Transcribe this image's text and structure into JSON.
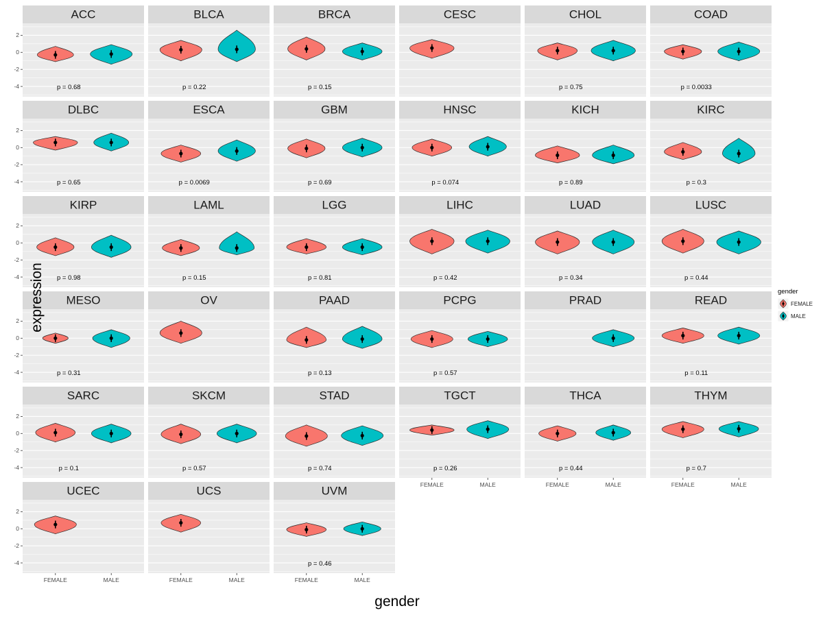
{
  "colors": {
    "strip": "#d9d9d9",
    "panel": "#ebebeb",
    "grid": "#ffffff",
    "female": "#F8766D",
    "male": "#00BFC4"
  },
  "legend": {
    "title": "gender",
    "entries": [
      {
        "label": "FEMALE",
        "color": "#F8766D"
      },
      {
        "label": "MALE",
        "color": "#00BFC4"
      }
    ]
  },
  "chart_data": {
    "type": "violin",
    "xlabel": "gender",
    "ylabel": "expression",
    "x_categories": [
      "FEMALE",
      "MALE"
    ],
    "yticks": [
      2,
      0,
      -2,
      -4
    ],
    "yticks_minor": [
      3,
      1,
      -1,
      -3,
      -5
    ],
    "ylim": [
      -5.2,
      3.4
    ],
    "grid": true,
    "legend_position": "right",
    "facets": [
      {
        "name": "ACC",
        "p": "p = 0.68",
        "row": 0,
        "col": 0,
        "x_axis": false,
        "violins": [
          {
            "gender": "FEMALE",
            "median": -0.3,
            "min": -1.1,
            "max": 0.7,
            "width": 0.78
          },
          {
            "gender": "MALE",
            "median": -0.2,
            "min": -1.4,
            "max": 0.9,
            "width": 0.9
          }
        ]
      },
      {
        "name": "BLCA",
        "p": "p = 0.22",
        "row": 0,
        "col": 1,
        "x_axis": false,
        "violins": [
          {
            "gender": "FEMALE",
            "median": 0.3,
            "min": -1.0,
            "max": 1.4,
            "width": 0.9
          },
          {
            "gender": "MALE",
            "median": 0.35,
            "min": -1.1,
            "max": 2.6,
            "width": 0.8
          }
        ]
      },
      {
        "name": "BRCA",
        "p": "p = 0.15",
        "row": 0,
        "col": 2,
        "x_axis": false,
        "violins": [
          {
            "gender": "FEMALE",
            "median": 0.4,
            "min": -0.9,
            "max": 1.8,
            "width": 0.8
          },
          {
            "gender": "MALE",
            "median": 0.1,
            "min": -0.9,
            "max": 1.1,
            "width": 0.85
          }
        ]
      },
      {
        "name": "CESC",
        "p": null,
        "row": 0,
        "col": 3,
        "x_axis": false,
        "violins": [
          {
            "gender": "FEMALE",
            "median": 0.5,
            "min": -0.7,
            "max": 1.5,
            "width": 0.95
          }
        ]
      },
      {
        "name": "CHOL",
        "p": "p = 0.75",
        "row": 0,
        "col": 4,
        "x_axis": false,
        "violins": [
          {
            "gender": "FEMALE",
            "median": 0.2,
            "min": -0.9,
            "max": 1.1,
            "width": 0.85
          },
          {
            "gender": "MALE",
            "median": 0.2,
            "min": -1.0,
            "max": 1.4,
            "width": 0.95
          }
        ]
      },
      {
        "name": "COAD",
        "p": "p = 0.0033",
        "row": 0,
        "col": 5,
        "x_axis": false,
        "violins": [
          {
            "gender": "FEMALE",
            "median": 0.1,
            "min": -0.8,
            "max": 0.9,
            "width": 0.8
          },
          {
            "gender": "MALE",
            "median": 0.1,
            "min": -1.0,
            "max": 1.2,
            "width": 0.9
          }
        ]
      },
      {
        "name": "DLBC",
        "p": "p = 0.65",
        "row": 1,
        "col": 0,
        "x_axis": false,
        "violins": [
          {
            "gender": "FEMALE",
            "median": 0.6,
            "min": -0.3,
            "max": 1.3,
            "width": 0.95
          },
          {
            "gender": "MALE",
            "median": 0.6,
            "min": -0.4,
            "max": 1.7,
            "width": 0.75
          }
        ]
      },
      {
        "name": "ESCA",
        "p": "p = 0.0069",
        "row": 1,
        "col": 1,
        "x_axis": false,
        "violins": [
          {
            "gender": "FEMALE",
            "median": -0.7,
            "min": -1.7,
            "max": 0.3,
            "width": 0.85
          },
          {
            "gender": "MALE",
            "median": -0.4,
            "min": -1.6,
            "max": 0.9,
            "width": 0.8
          }
        ]
      },
      {
        "name": "GBM",
        "p": "p = 0.69",
        "row": 1,
        "col": 2,
        "x_axis": false,
        "violins": [
          {
            "gender": "FEMALE",
            "median": -0.1,
            "min": -1.2,
            "max": 1.0,
            "width": 0.8
          },
          {
            "gender": "MALE",
            "median": 0.0,
            "min": -1.1,
            "max": 1.1,
            "width": 0.85
          }
        ]
      },
      {
        "name": "HNSC",
        "p": "p = 0.074",
        "row": 1,
        "col": 3,
        "x_axis": false,
        "violins": [
          {
            "gender": "FEMALE",
            "median": 0.0,
            "min": -1.0,
            "max": 1.0,
            "width": 0.85
          },
          {
            "gender": "MALE",
            "median": 0.1,
            "min": -1.0,
            "max": 1.3,
            "width": 0.8
          }
        ]
      },
      {
        "name": "KICH",
        "p": "p = 0.89",
        "row": 1,
        "col": 4,
        "x_axis": false,
        "violins": [
          {
            "gender": "FEMALE",
            "median": -0.9,
            "min": -1.8,
            "max": 0.2,
            "width": 0.95
          },
          {
            "gender": "MALE",
            "median": -0.9,
            "min": -1.9,
            "max": 0.3,
            "width": 0.9
          }
        ]
      },
      {
        "name": "KIRC",
        "p": "p = 0.3",
        "row": 1,
        "col": 5,
        "x_axis": false,
        "violins": [
          {
            "gender": "FEMALE",
            "median": -0.5,
            "min": -1.4,
            "max": 0.6,
            "width": 0.8
          },
          {
            "gender": "MALE",
            "median": -0.7,
            "min": -1.9,
            "max": 1.1,
            "width": 0.7
          }
        ]
      },
      {
        "name": "KIRP",
        "p": "p = 0.98",
        "row": 2,
        "col": 0,
        "x_axis": false,
        "violins": [
          {
            "gender": "FEMALE",
            "median": -0.5,
            "min": -1.5,
            "max": 0.6,
            "width": 0.8
          },
          {
            "gender": "MALE",
            "median": -0.5,
            "min": -1.7,
            "max": 0.9,
            "width": 0.85
          }
        ]
      },
      {
        "name": "LAML",
        "p": "p = 0.15",
        "row": 2,
        "col": 1,
        "x_axis": false,
        "violins": [
          {
            "gender": "FEMALE",
            "median": -0.6,
            "min": -1.5,
            "max": 0.4,
            "width": 0.8
          },
          {
            "gender": "MALE",
            "median": -0.6,
            "min": -1.4,
            "max": 1.3,
            "width": 0.75
          }
        ]
      },
      {
        "name": "LGG",
        "p": "p = 0.81",
        "row": 2,
        "col": 2,
        "x_axis": false,
        "violins": [
          {
            "gender": "FEMALE",
            "median": -0.5,
            "min": -1.3,
            "max": 0.5,
            "width": 0.85
          },
          {
            "gender": "MALE",
            "median": -0.5,
            "min": -1.4,
            "max": 0.5,
            "width": 0.85
          }
        ]
      },
      {
        "name": "LIHC",
        "p": "p = 0.42",
        "row": 2,
        "col": 3,
        "x_axis": false,
        "violins": [
          {
            "gender": "FEMALE",
            "median": 0.2,
            "min": -1.3,
            "max": 1.6,
            "width": 0.95
          },
          {
            "gender": "MALE",
            "median": 0.2,
            "min": -1.2,
            "max": 1.5,
            "width": 0.95
          }
        ]
      },
      {
        "name": "LUAD",
        "p": "p = 0.34",
        "row": 2,
        "col": 4,
        "x_axis": false,
        "violins": [
          {
            "gender": "FEMALE",
            "median": 0.1,
            "min": -1.3,
            "max": 1.4,
            "width": 0.95
          },
          {
            "gender": "MALE",
            "median": 0.1,
            "min": -1.3,
            "max": 1.5,
            "width": 0.9
          }
        ]
      },
      {
        "name": "LUSC",
        "p": "p = 0.44",
        "row": 2,
        "col": 5,
        "x_axis": false,
        "violins": [
          {
            "gender": "FEMALE",
            "median": 0.2,
            "min": -1.2,
            "max": 1.6,
            "width": 0.9
          },
          {
            "gender": "MALE",
            "median": 0.1,
            "min": -1.3,
            "max": 1.4,
            "width": 0.95
          }
        ]
      },
      {
        "name": "MESO",
        "p": "p = 0.31",
        "row": 3,
        "col": 0,
        "x_axis": false,
        "violins": [
          {
            "gender": "FEMALE",
            "median": 0.0,
            "min": -0.6,
            "max": 0.6,
            "width": 0.55
          },
          {
            "gender": "MALE",
            "median": 0.0,
            "min": -1.1,
            "max": 1.0,
            "width": 0.8
          }
        ]
      },
      {
        "name": "OV",
        "p": null,
        "row": 3,
        "col": 1,
        "x_axis": false,
        "violins": [
          {
            "gender": "FEMALE",
            "median": 0.6,
            "min": -0.6,
            "max": 2.0,
            "width": 0.9
          }
        ]
      },
      {
        "name": "PAAD",
        "p": "p = 0.13",
        "row": 3,
        "col": 2,
        "x_axis": false,
        "violins": [
          {
            "gender": "FEMALE",
            "median": -0.2,
            "min": -1.1,
            "max": 1.3,
            "width": 0.85
          },
          {
            "gender": "MALE",
            "median": -0.1,
            "min": -1.2,
            "max": 1.4,
            "width": 0.85
          }
        ]
      },
      {
        "name": "PCPG",
        "p": "p = 0.57",
        "row": 3,
        "col": 3,
        "x_axis": false,
        "violins": [
          {
            "gender": "FEMALE",
            "median": -0.1,
            "min": -1.1,
            "max": 0.9,
            "width": 0.9
          },
          {
            "gender": "MALE",
            "median": -0.1,
            "min": -1.0,
            "max": 0.8,
            "width": 0.85
          }
        ]
      },
      {
        "name": "PRAD",
        "p": null,
        "row": 3,
        "col": 4,
        "x_axis": false,
        "violins": [
          {
            "gender": "MALE",
            "median": 0.0,
            "min": -1.0,
            "max": 1.0,
            "width": 0.9
          }
        ]
      },
      {
        "name": "READ",
        "p": "p = 0.11",
        "row": 3,
        "col": 5,
        "x_axis": false,
        "violins": [
          {
            "gender": "FEMALE",
            "median": 0.3,
            "min": -0.6,
            "max": 1.2,
            "width": 0.9
          },
          {
            "gender": "MALE",
            "median": 0.3,
            "min": -0.7,
            "max": 1.3,
            "width": 0.9
          }
        ]
      },
      {
        "name": "SARC",
        "p": "p = 0.1",
        "row": 4,
        "col": 0,
        "x_axis": false,
        "violins": [
          {
            "gender": "FEMALE",
            "median": 0.1,
            "min": -1.0,
            "max": 1.2,
            "width": 0.85
          },
          {
            "gender": "MALE",
            "median": 0.0,
            "min": -1.1,
            "max": 1.1,
            "width": 0.85
          }
        ]
      },
      {
        "name": "SKCM",
        "p": "p = 0.57",
        "row": 4,
        "col": 1,
        "x_axis": false,
        "violins": [
          {
            "gender": "FEMALE",
            "median": -0.1,
            "min": -1.2,
            "max": 1.1,
            "width": 0.85
          },
          {
            "gender": "MALE",
            "median": 0.0,
            "min": -1.1,
            "max": 1.1,
            "width": 0.85
          }
        ]
      },
      {
        "name": "STAD",
        "p": "p = 0.74",
        "row": 4,
        "col": 2,
        "x_axis": false,
        "violins": [
          {
            "gender": "FEMALE",
            "median": -0.3,
            "min": -1.5,
            "max": 1.0,
            "width": 0.9
          },
          {
            "gender": "MALE",
            "median": -0.25,
            "min": -1.4,
            "max": 0.9,
            "width": 0.9
          }
        ]
      },
      {
        "name": "TGCT",
        "p": "p = 0.26",
        "row": 4,
        "col": 3,
        "x_axis": true,
        "violins": [
          {
            "gender": "FEMALE",
            "median": 0.4,
            "min": -0.2,
            "max": 1.0,
            "width": 0.95
          },
          {
            "gender": "MALE",
            "median": 0.5,
            "min": -0.6,
            "max": 1.5,
            "width": 0.9
          }
        ]
      },
      {
        "name": "THCA",
        "p": "p = 0.44",
        "row": 4,
        "col": 4,
        "x_axis": true,
        "violins": [
          {
            "gender": "FEMALE",
            "median": 0.0,
            "min": -0.9,
            "max": 0.9,
            "width": 0.8
          },
          {
            "gender": "MALE",
            "median": 0.1,
            "min": -0.8,
            "max": 1.0,
            "width": 0.75
          }
        ]
      },
      {
        "name": "THYM",
        "p": "p = 0.7",
        "row": 4,
        "col": 5,
        "x_axis": true,
        "violins": [
          {
            "gender": "FEMALE",
            "median": 0.5,
            "min": -0.5,
            "max": 1.4,
            "width": 0.9
          },
          {
            "gender": "MALE",
            "median": 0.55,
            "min": -0.4,
            "max": 1.4,
            "width": 0.85
          }
        ]
      },
      {
        "name": "UCEC",
        "p": null,
        "row": 5,
        "col": 0,
        "x_axis": true,
        "violins": [
          {
            "gender": "FEMALE",
            "median": 0.5,
            "min": -0.6,
            "max": 1.5,
            "width": 0.9
          }
        ]
      },
      {
        "name": "UCS",
        "p": null,
        "row": 5,
        "col": 1,
        "x_axis": true,
        "violins": [
          {
            "gender": "FEMALE",
            "median": 0.7,
            "min": -0.4,
            "max": 1.7,
            "width": 0.85
          }
        ]
      },
      {
        "name": "UVM",
        "p": "p = 0.46",
        "row": 5,
        "col": 2,
        "x_axis": true,
        "violins": [
          {
            "gender": "FEMALE",
            "median": -0.1,
            "min": -0.9,
            "max": 0.7,
            "width": 0.85
          },
          {
            "gender": "MALE",
            "median": 0.0,
            "min": -0.8,
            "max": 0.8,
            "width": 0.8
          }
        ]
      }
    ]
  }
}
